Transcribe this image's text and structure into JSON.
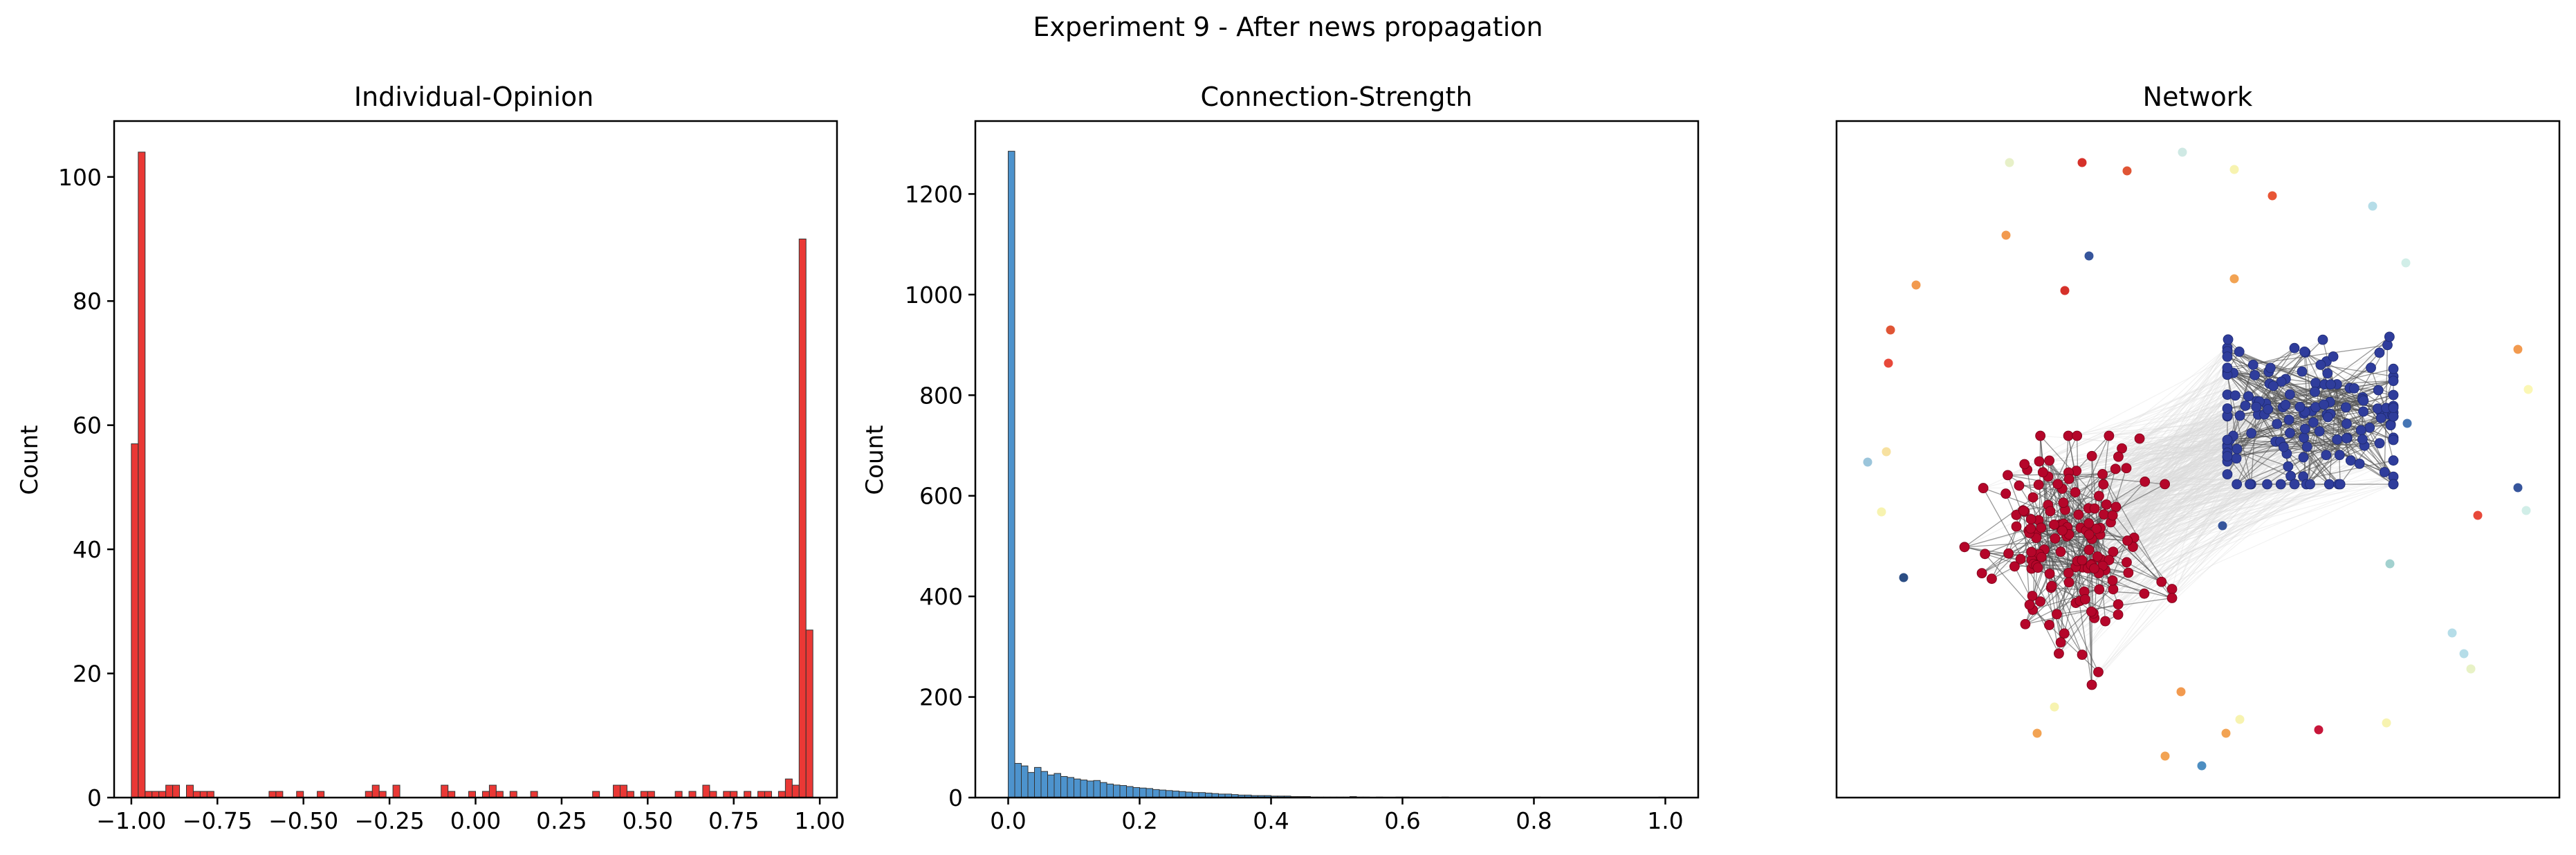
{
  "suptitle": "Experiment 9 - After news propagation",
  "chart_data": [
    {
      "type": "bar",
      "title": "Individual-Opinion",
      "xlabel": "",
      "ylabel": "Count",
      "xlim": [
        -1.05,
        1.05
      ],
      "ylim": [
        0,
        109
      ],
      "color": "#e8221f",
      "x_ticks": [
        -1.0,
        -0.75,
        -0.5,
        -0.25,
        0.0,
        0.25,
        0.5,
        0.75,
        1.0
      ],
      "x_tick_labels": [
        "−1.00",
        "−0.75",
        "−0.50",
        "−0.25",
        "0.00",
        "0.25",
        "0.50",
        "0.75",
        "1.00"
      ],
      "y_ticks": [
        0,
        20,
        40,
        60,
        80,
        100
      ],
      "y_tick_labels": [
        "0",
        "20",
        "40",
        "60",
        "80",
        "100"
      ],
      "bin_start": -1.0,
      "bin_width": 0.02,
      "counts": [
        57,
        104,
        1,
        1,
        1,
        2,
        2,
        0,
        2,
        1,
        1,
        1,
        0,
        0,
        0,
        0,
        0,
        0,
        0,
        0,
        1,
        1,
        0,
        0,
        1,
        0,
        0,
        1,
        0,
        0,
        0,
        0,
        0,
        0,
        1,
        2,
        1,
        0,
        2,
        0,
        0,
        0,
        0,
        0,
        0,
        2,
        1,
        0,
        0,
        1,
        0,
        1,
        2,
        1,
        0,
        1,
        0,
        0,
        1,
        0,
        0,
        0,
        0,
        0,
        0,
        0,
        0,
        1,
        0,
        0,
        2,
        2,
        1,
        0,
        1,
        1,
        0,
        0,
        0,
        1,
        0,
        1,
        0,
        2,
        1,
        0,
        1,
        1,
        0,
        1,
        0,
        1,
        1,
        0,
        1,
        3,
        2,
        90,
        27
      ]
    },
    {
      "type": "bar",
      "title": "Connection-Strength",
      "xlabel": "",
      "ylabel": "Count",
      "xlim": [
        -0.05,
        1.05
      ],
      "ylim": [
        0,
        1345
      ],
      "color": "#3a87c8",
      "x_ticks": [
        0.0,
        0.2,
        0.4,
        0.6,
        0.8,
        1.0
      ],
      "x_tick_labels": [
        "0.0",
        "0.2",
        "0.4",
        "0.6",
        "0.8",
        "1.0"
      ],
      "y_ticks": [
        0,
        200,
        400,
        600,
        800,
        1000,
        1200
      ],
      "y_tick_labels": [
        "0",
        "200",
        "400",
        "600",
        "800",
        "1000",
        "1200"
      ],
      "bin_start": 0.0,
      "bin_width": 0.01,
      "counts": [
        1285,
        68,
        63,
        50,
        60,
        52,
        45,
        48,
        42,
        40,
        37,
        35,
        33,
        34,
        30,
        27,
        25,
        24,
        22,
        20,
        19,
        18,
        16,
        15,
        14,
        13,
        12,
        11,
        10,
        10,
        9,
        8,
        7,
        7,
        6,
        5,
        5,
        4,
        4,
        4,
        3,
        3,
        3,
        2,
        2,
        2,
        1,
        1,
        1,
        1,
        1,
        1,
        2,
        1,
        1,
        0,
        1,
        0,
        0,
        1,
        1,
        0,
        0,
        0,
        0,
        0,
        1,
        0,
        0,
        0,
        0,
        0,
        0,
        0,
        0,
        0,
        0,
        0,
        0,
        0,
        1,
        0,
        0,
        0,
        0,
        0,
        0,
        0,
        0,
        0,
        0,
        0,
        0,
        0,
        0,
        0,
        0,
        0,
        0,
        1
      ]
    }
  ],
  "network": {
    "title": "Network",
    "colors": {
      "cluster_a": "#b5062a",
      "cluster_b": "#2f3d9c",
      "edge": "#555555",
      "faint_edge": "#d9d9d9"
    }
  }
}
